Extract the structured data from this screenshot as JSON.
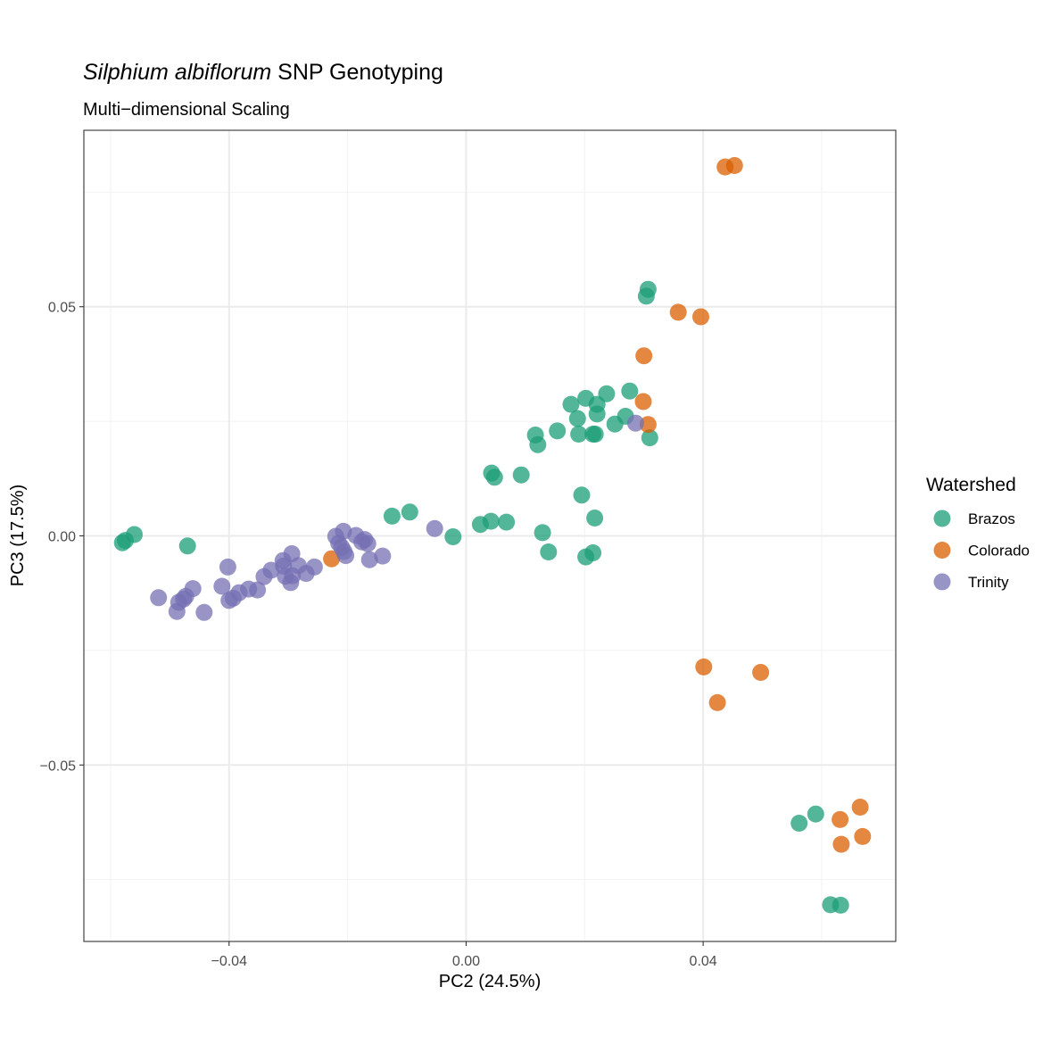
{
  "chart_data": {
    "type": "scatter",
    "title_italic": "Silphium albiflorum",
    "title_rest": " SNP Genotyping",
    "subtitle": "Multi−dimensional Scaling",
    "xlabel": "PC2 (24.5%)",
    "ylabel": "PC3 (17.5%)",
    "xlim": [
      -0.0645,
      0.0725
    ],
    "ylim": [
      -0.0885,
      0.0885
    ],
    "x_ticks": [
      -0.04,
      0.0,
      0.04
    ],
    "x_tick_labels": [
      "−0.04",
      "0.00",
      "0.04"
    ],
    "y_ticks": [
      -0.05,
      0.0,
      0.05
    ],
    "y_tick_labels": [
      "−0.05",
      "0.00",
      "0.05"
    ],
    "grid": true,
    "legend": {
      "title": "Watershed",
      "position": "right",
      "entries": [
        "Brazos",
        "Colorado",
        "Trinity"
      ]
    },
    "series": [
      {
        "name": "Brazos",
        "color": "#1b9e77",
        "points": [
          [
            -0.058,
            -0.0015
          ],
          [
            -0.0575,
            -0.001
          ],
          [
            -0.056,
            0.0003
          ],
          [
            -0.047,
            -0.0022
          ],
          [
            -0.0125,
            0.0043
          ],
          [
            -0.0095,
            0.0052
          ],
          [
            -0.0022,
            -0.0002
          ],
          [
            0.0024,
            0.0025
          ],
          [
            0.0042,
            0.0032
          ],
          [
            0.0068,
            0.003
          ],
          [
            0.0129,
            0.0007
          ],
          [
            0.0139,
            -0.0035
          ],
          [
            0.0043,
            0.0137
          ],
          [
            0.0048,
            0.0128
          ],
          [
            0.0093,
            0.0133
          ],
          [
            0.0117,
            0.022
          ],
          [
            0.0121,
            0.0199
          ],
          [
            0.0154,
            0.0229
          ],
          [
            0.0177,
            0.0287
          ],
          [
            0.0188,
            0.0256
          ],
          [
            0.019,
            0.0222
          ],
          [
            0.0202,
            0.03
          ],
          [
            0.0214,
            0.0222
          ],
          [
            0.0218,
            0.0222
          ],
          [
            0.0221,
            0.0287
          ],
          [
            0.0221,
            0.0266
          ],
          [
            0.0237,
            0.031
          ],
          [
            0.0251,
            0.0244
          ],
          [
            0.0269,
            0.0261
          ],
          [
            0.0276,
            0.0316
          ],
          [
            0.0304,
            0.0523
          ],
          [
            0.0307,
            0.0538
          ],
          [
            0.031,
            0.0214
          ],
          [
            0.0195,
            0.0089
          ],
          [
            0.0217,
            0.0039
          ],
          [
            0.0214,
            -0.0037
          ],
          [
            0.0202,
            -0.0046
          ],
          [
            0.0562,
            -0.0627
          ],
          [
            0.059,
            -0.0607
          ],
          [
            0.0615,
            -0.0805
          ],
          [
            0.0632,
            -0.0806
          ]
        ]
      },
      {
        "name": "Colorado",
        "color": "#d95f02",
        "points": [
          [
            0.0437,
            0.0805
          ],
          [
            0.0453,
            0.0808
          ],
          [
            0.0358,
            0.0488
          ],
          [
            0.0396,
            0.0478
          ],
          [
            0.03,
            0.0393
          ],
          [
            0.0299,
            0.0293
          ],
          [
            0.0307,
            0.0243
          ],
          [
            -0.0227,
            -0.005
          ],
          [
            0.0401,
            -0.0286
          ],
          [
            0.0424,
            -0.0364
          ],
          [
            0.0497,
            -0.0298
          ],
          [
            0.0631,
            -0.0619
          ],
          [
            0.0633,
            -0.0673
          ],
          [
            0.0665,
            -0.0592
          ],
          [
            0.0669,
            -0.0656
          ]
        ]
      },
      {
        "name": "Trinity",
        "color": "#7570b3",
        "points": [
          [
            0.0286,
            0.0246
          ],
          [
            -0.0053,
            0.0016
          ],
          [
            -0.0141,
            -0.0044
          ],
          [
            -0.0163,
            -0.0052
          ],
          [
            -0.0166,
            -0.0017
          ],
          [
            -0.0171,
            -0.0008
          ],
          [
            -0.0176,
            -0.0013
          ],
          [
            -0.0186,
            0.0001
          ],
          [
            -0.0203,
            -0.0043
          ],
          [
            -0.0206,
            -0.0034
          ],
          [
            -0.021,
            -0.0025
          ],
          [
            -0.0207,
            0.001
          ],
          [
            -0.0215,
            -0.0016
          ],
          [
            -0.022,
            -0.0001
          ],
          [
            -0.0256,
            -0.0068
          ],
          [
            -0.027,
            -0.0082
          ],
          [
            -0.0283,
            -0.0065
          ],
          [
            -0.0293,
            -0.0087
          ],
          [
            -0.0294,
            -0.0039
          ],
          [
            -0.0296,
            -0.0102
          ],
          [
            -0.0305,
            -0.0088
          ],
          [
            -0.0309,
            -0.0054
          ],
          [
            -0.0308,
            -0.0066
          ],
          [
            -0.0329,
            -0.0075
          ],
          [
            -0.0341,
            -0.0089
          ],
          [
            -0.0352,
            -0.0118
          ],
          [
            -0.0367,
            -0.0116
          ],
          [
            -0.0383,
            -0.0124
          ],
          [
            -0.0393,
            -0.0136
          ],
          [
            -0.04,
            -0.0141
          ],
          [
            -0.0402,
            -0.0068
          ],
          [
            -0.0412,
            -0.011
          ],
          [
            -0.0442,
            -0.0167
          ],
          [
            -0.0461,
            -0.0115
          ],
          [
            -0.0473,
            -0.0132
          ],
          [
            -0.0477,
            -0.0138
          ],
          [
            -0.0485,
            -0.0145
          ],
          [
            -0.0488,
            -0.0165
          ],
          [
            -0.0519,
            -0.0135
          ]
        ]
      }
    ]
  }
}
